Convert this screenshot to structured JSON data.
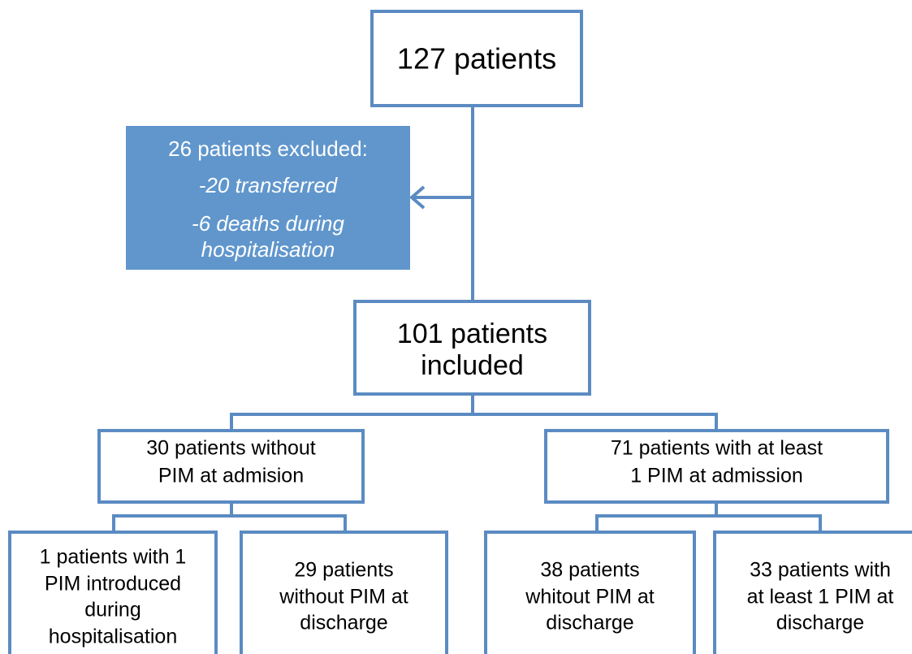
{
  "nodes": [
    {
      "lines": [
        "127 patients"
      ]
    },
    {
      "heading": "26 patients excluded:",
      "items": [
        "-20 transferred",
        "-6 deaths during hospitalisation"
      ]
    },
    {
      "lines": [
        "101 patients",
        "included"
      ]
    },
    {
      "lines": [
        "30 patients without",
        "PIM at admision"
      ]
    },
    {
      "lines": [
        "71 patients with at least",
        "1 PIM at admission"
      ]
    },
    {
      "lines": [
        "1 patients with 1",
        "PIM introduced",
        "during",
        "hospitalisation"
      ]
    },
    {
      "lines": [
        "29 patients",
        "without PIM at",
        "discharge"
      ]
    },
    {
      "lines": [
        "38 patients",
        "whitout PIM at",
        "discharge"
      ]
    },
    {
      "lines": [
        "33 patients with",
        "at least 1 PIM at",
        "discharge"
      ]
    }
  ]
}
